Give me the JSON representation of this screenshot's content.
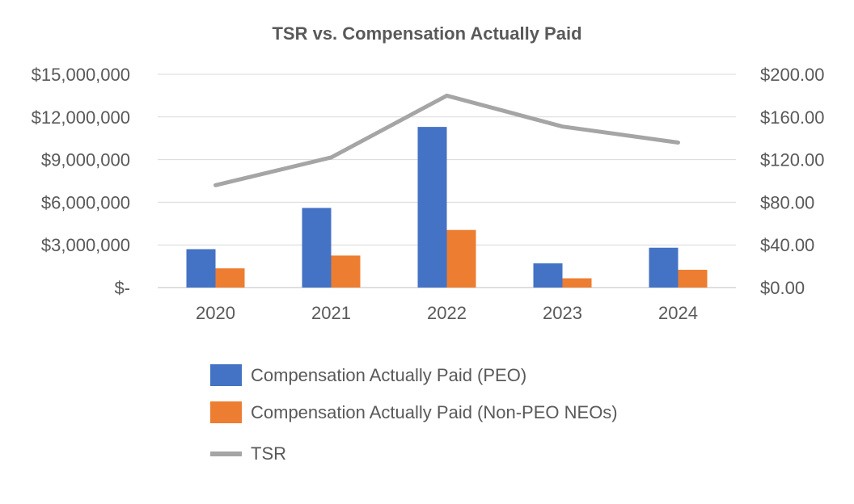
{
  "chart_data": {
    "type": "bar",
    "title": "TSR vs. Compensation Actually Paid",
    "categories": [
      "2020",
      "2021",
      "2022",
      "2023",
      "2024"
    ],
    "series": [
      {
        "name": "Compensation Actually Paid (PEO)",
        "type": "bar",
        "axis": "left",
        "color": "#4472C4",
        "values": [
          2700000,
          5600000,
          11300000,
          1700000,
          2800000
        ]
      },
      {
        "name": "Compensation Actually Paid (Non-PEO NEOs)",
        "type": "bar",
        "axis": "left",
        "color": "#ED7D31",
        "values": [
          1350000,
          2250000,
          4050000,
          650000,
          1250000
        ]
      },
      {
        "name": "TSR",
        "type": "line",
        "axis": "right",
        "color": "#A5A5A5",
        "values": [
          96,
          122,
          180,
          151,
          136
        ]
      }
    ],
    "y_left": {
      "range": [
        0,
        15000000
      ],
      "ticks": [
        0,
        3000000,
        6000000,
        9000000,
        12000000,
        15000000
      ],
      "tick_labels": [
        "$-",
        "$3,000,000",
        "$6,000,000",
        "$9,000,000",
        "$12,000,000",
        "$15,000,000"
      ]
    },
    "y_right": {
      "range": [
        0,
        200
      ],
      "ticks": [
        0,
        40,
        80,
        120,
        160,
        200
      ],
      "tick_labels": [
        "$0.00",
        "$40.00",
        "$80.00",
        "$120.00",
        "$160.00",
        "$200.00"
      ]
    },
    "gridlines": true,
    "legend_position": "bottom"
  }
}
